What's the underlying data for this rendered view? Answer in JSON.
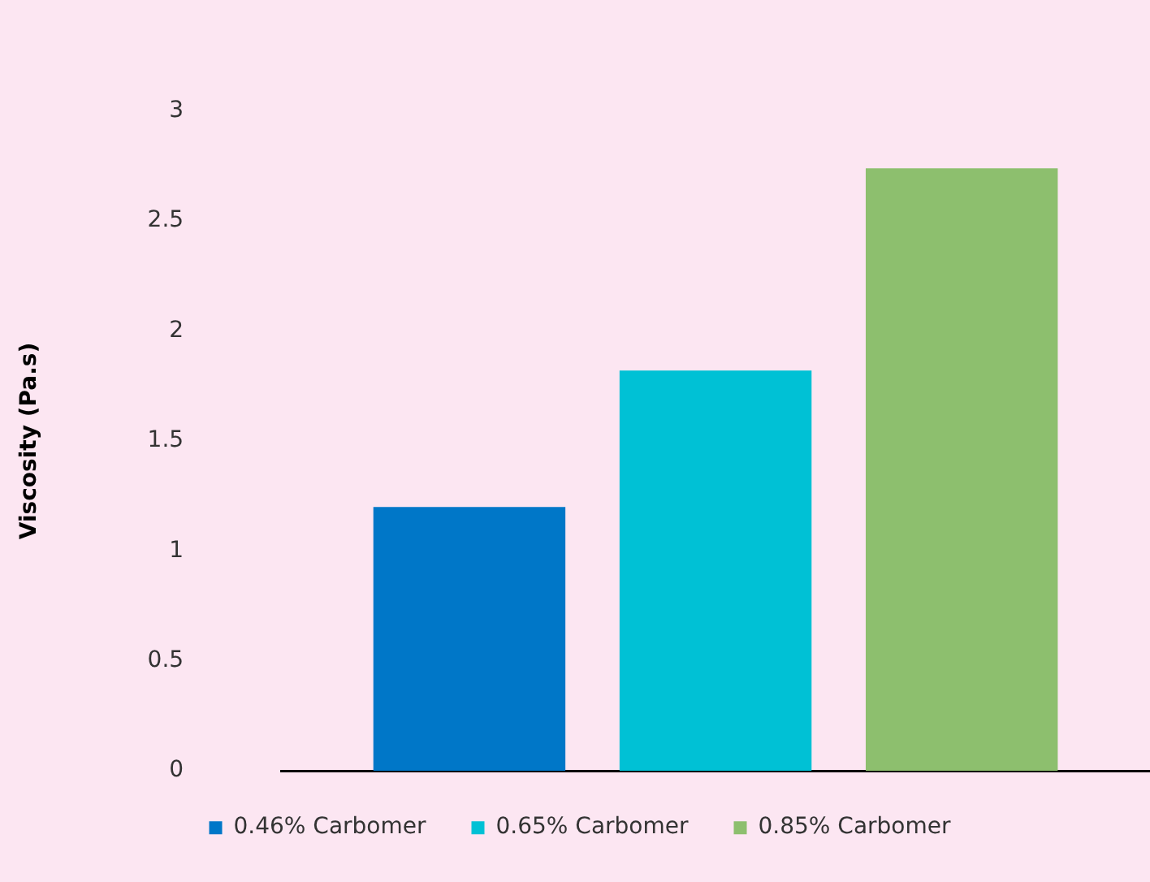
{
  "chart_data": {
    "type": "bar",
    "ylabel": "Viscosity (Pa.s)",
    "categories": [
      null
    ],
    "series": [
      {
        "name": "0.46% Carbomer",
        "color": "#0077c8",
        "values": [
          1.2
        ]
      },
      {
        "name": "0.65% Carbomer",
        "color": "#00c1d5",
        "values": [
          1.82
        ]
      },
      {
        "name": "0.85% Carbomer",
        "color": "#8dbf6e",
        "values": [
          2.74
        ]
      }
    ],
    "ylim": [
      0,
      3
    ],
    "yticks": [
      0,
      0.5,
      1,
      1.5,
      2,
      2.5,
      3
    ],
    "grid": false,
    "legend": "bottom"
  }
}
